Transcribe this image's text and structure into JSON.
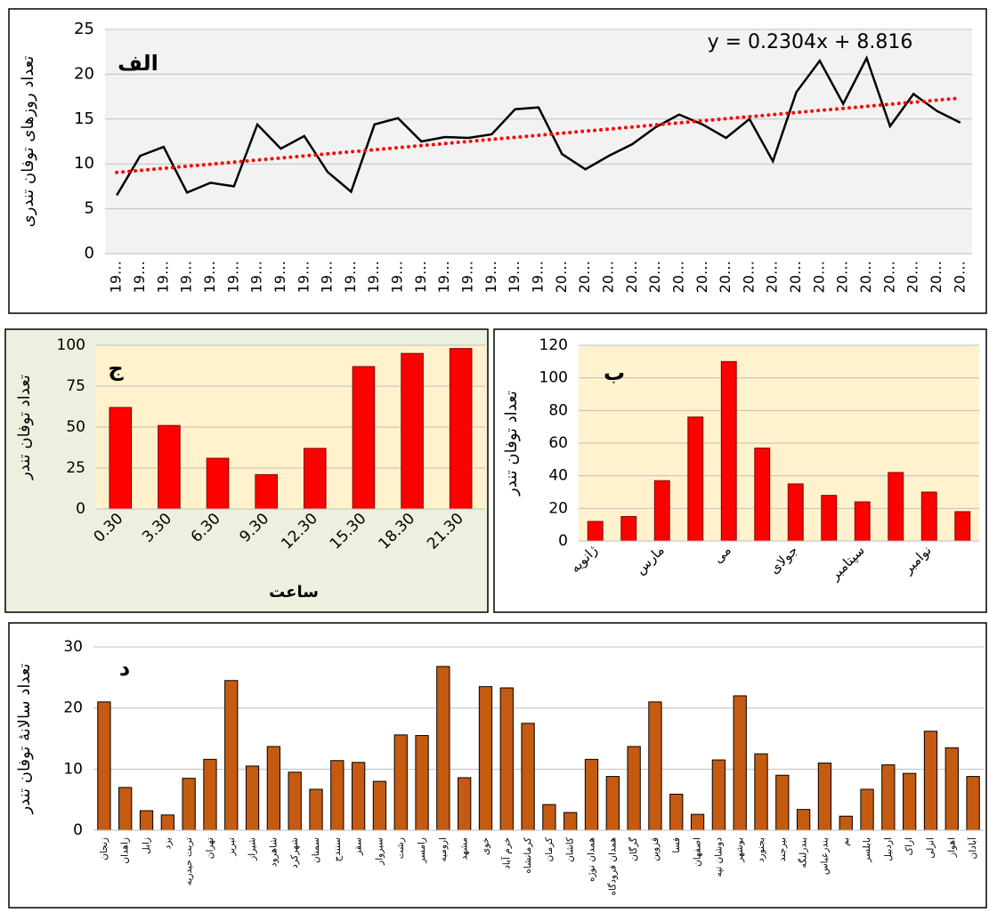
{
  "chart_data": [
    {
      "type": "line",
      "title": "الف",
      "ylabel": "تعداد روزهای توفان تندری",
      "categories": [
        "19…",
        "19…",
        "19…",
        "19…",
        "19…",
        "19…",
        "19…",
        "19…",
        "19…",
        "19…",
        "19…",
        "19…",
        "19…",
        "19…",
        "19…",
        "19…",
        "19…",
        "19…",
        "19…",
        "20…",
        "20…",
        "20…",
        "20…",
        "20…",
        "20…",
        "20…",
        "20…",
        "20…",
        "20…",
        "20…",
        "20…",
        "20…",
        "20…",
        "20…",
        "20…",
        "20…",
        "20…"
      ],
      "series": [
        {
          "name": "تعداد روزهای توفان تندری",
          "color": "#000000",
          "values": [
            6.5,
            10.9,
            11.9,
            6.8,
            7.9,
            7.5,
            14.4,
            11.7,
            13.1,
            9.1,
            6.9,
            14.4,
            15.1,
            12.5,
            13.0,
            12.9,
            13.3,
            16.1,
            16.3,
            11.1,
            9.4,
            10.9,
            12.2,
            14.1,
            15.5,
            14.4,
            12.9,
            15.0,
            10.3,
            18.0,
            21.5,
            16.7,
            21.8,
            14.2,
            17.8,
            15.9,
            14.6
          ]
        }
      ],
      "trendline": {
        "label": "y = 0.2304x + 8.816",
        "slope": 0.2304,
        "intercept": 8.816,
        "color": "#ff0000"
      },
      "ylim": [
        0,
        25
      ],
      "yticks": [
        0,
        5,
        10,
        15,
        20,
        25
      ],
      "grid": true
    },
    {
      "type": "bar",
      "title": "ج",
      "ylabel": "تعداد توفان تندر",
      "xlabel": "ساعت",
      "categories": [
        "0.30",
        "3.30",
        "6.30",
        "9.30",
        "12.30",
        "15.30",
        "18.30",
        "21.30"
      ],
      "values": [
        62,
        51,
        31,
        21,
        37,
        87,
        95,
        98
      ],
      "color": "#ff0000",
      "ylim": [
        0,
        100
      ],
      "yticks": [
        0,
        25,
        50,
        75,
        100
      ],
      "grid": true
    },
    {
      "type": "bar",
      "title": "ب",
      "ylabel": "تعداد توفان تندر",
      "categories": [
        "ژانویه",
        null,
        "مارس",
        null,
        "می",
        null,
        "جولای",
        null,
        "سپتامبر",
        null,
        "نوامبر",
        null
      ],
      "values": [
        12,
        15,
        37,
        76,
        110,
        57,
        35,
        28,
        24,
        42,
        30,
        18
      ],
      "color": "#ff0000",
      "ylim": [
        0,
        120
      ],
      "yticks": [
        0,
        20,
        40,
        60,
        80,
        100,
        120
      ],
      "grid": true
    },
    {
      "type": "bar",
      "title": "د",
      "ylabel": "تعداد سالانهٔ توفان تندر",
      "categories": [
        "زنجان",
        "زاهدان",
        "زابل",
        "یزد",
        "تربت حیدریه",
        "تهران",
        "تبریز",
        "شیراز",
        "شاهرود",
        "شهرکرد",
        "سمنان",
        "سنندج",
        "سقز",
        "سبزوار",
        "رشت",
        "رامسر",
        "ارومیه",
        "مشهد",
        "خوی",
        "خرم آباد",
        "کرمانشاه",
        "کرمان",
        "کاشان",
        "همدان نوژه",
        "همدان فرودگاه",
        "گرگان",
        "قزوین",
        "فسا",
        "اصفهان",
        "دوشان تپه",
        "بوشهر",
        "بجنورد",
        "بیرجند",
        "بندرلنگه",
        "بندرعباس",
        "بم",
        "بابلسر",
        "اردبیل",
        "اراک",
        "انزلی",
        "اهواز",
        "آبادان"
      ],
      "values": [
        21,
        7,
        3.2,
        2.5,
        8.5,
        11.6,
        24.5,
        10.5,
        13.7,
        9.5,
        6.7,
        11.4,
        11.1,
        8,
        15.6,
        15.5,
        26.8,
        8.6,
        23.5,
        23.3,
        17.5,
        4.2,
        2.9,
        11.6,
        8.8,
        13.7,
        21,
        5.9,
        2.6,
        11.5,
        22,
        12.5,
        9,
        3.4,
        11,
        2.3,
        6.7,
        10.7,
        9.3,
        16.2,
        13.5,
        8.8
      ],
      "color": "#c55a11",
      "ylim": [
        0,
        30
      ],
      "yticks": [
        0,
        10,
        20,
        30
      ],
      "grid": true
    }
  ]
}
